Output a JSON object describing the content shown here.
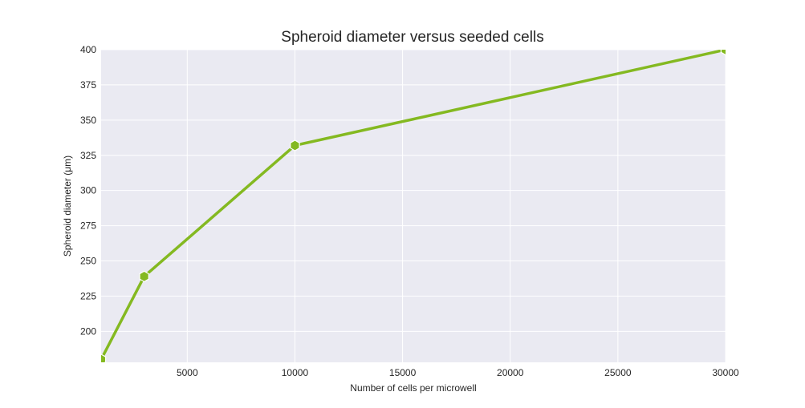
{
  "chart_data": {
    "type": "line",
    "title": "Spheroid diameter versus seeded cells",
    "xlabel": "Number of cells per microwell",
    "ylabel": "Spheroid diameter (μm)",
    "x": [
      1000,
      3000,
      10000,
      30000
    ],
    "series": [
      {
        "values": [
          180,
          239,
          332,
          400
        ]
      }
    ],
    "xlim": [
      1000,
      30000
    ],
    "ylim": [
      178,
      400
    ],
    "xticks": [
      5000,
      10000,
      15000,
      20000,
      25000,
      30000
    ],
    "yticks": [
      200,
      225,
      250,
      275,
      300,
      325,
      350,
      375,
      400
    ],
    "grid": true,
    "colors": {
      "line": "#84b921",
      "background": "#eaeaf2",
      "grid": "#ffffff"
    },
    "marker": "hexagon"
  }
}
